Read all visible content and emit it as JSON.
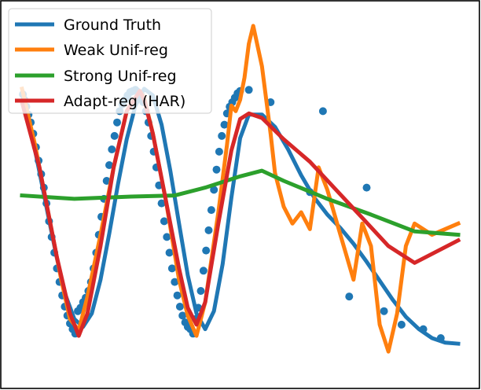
{
  "chart_data": {
    "type": "line",
    "title": "",
    "xlabel": "",
    "ylabel": "",
    "xlim": [
      0,
      100
    ],
    "ylim": [
      -1.5,
      1.65
    ],
    "grid": false,
    "axes_visible": false,
    "legend_position": "top-left",
    "series": [
      {
        "name": "Ground Truth",
        "color": "#1f77b4",
        "x": [
          0,
          2,
          4,
          6,
          8,
          10,
          12,
          14,
          16,
          18,
          20,
          22,
          24,
          26,
          28,
          30,
          32,
          34,
          36,
          38,
          40,
          42,
          44,
          46,
          48,
          50,
          52,
          55,
          58,
          61,
          64,
          67,
          70,
          73,
          76,
          79,
          82,
          85,
          88,
          91,
          94,
          97,
          100
        ],
        "y": [
          0.96,
          0.64,
          0.26,
          -0.13,
          -0.51,
          -0.84,
          -1.05,
          -1.12,
          -1.0,
          -0.7,
          -0.29,
          0.15,
          0.55,
          0.85,
          1.0,
          0.94,
          0.68,
          0.27,
          -0.2,
          -0.66,
          -1.0,
          -1.14,
          -0.98,
          -0.56,
          0.03,
          0.56,
          0.77,
          0.77,
          0.66,
          0.46,
          0.23,
          0.03,
          -0.12,
          -0.24,
          -0.38,
          -0.54,
          -0.71,
          -0.88,
          -1.03,
          -1.14,
          -1.22,
          -1.26,
          -1.27
        ]
      },
      {
        "name": "Weak Unif-reg",
        "color": "#ff7f0e",
        "x": [
          0,
          3,
          6,
          9,
          11,
          13,
          15,
          18,
          21,
          24,
          27,
          28,
          30,
          33,
          36,
          38,
          40,
          42,
          45,
          47,
          48,
          49,
          50,
          51,
          52,
          53,
          55,
          57,
          58,
          60,
          62,
          64,
          66,
          68,
          70,
          73,
          76,
          78,
          80,
          82,
          84,
          86,
          88,
          90,
          94,
          100
        ],
        "y": [
          1.0,
          0.5,
          -0.1,
          -0.7,
          -1.05,
          -1.15,
          -0.85,
          -0.3,
          0.3,
          0.8,
          0.98,
          0.92,
          0.6,
          0.0,
          -0.7,
          -1.02,
          -1.2,
          -0.9,
          -0.1,
          0.5,
          0.85,
          0.8,
          0.9,
          1.1,
          1.4,
          1.56,
          1.2,
          0.6,
          0.25,
          -0.05,
          -0.2,
          -0.1,
          -0.25,
          0.3,
          0.1,
          -0.3,
          -0.7,
          -0.2,
          -0.4,
          -1.1,
          -1.34,
          -1.0,
          -0.4,
          -0.2,
          -0.3,
          -0.2
        ]
      },
      {
        "name": "Strong Unif-reg",
        "color": "#2ca02c",
        "x": [
          0,
          12,
          25,
          35,
          42,
          50,
          55,
          60,
          70,
          80,
          90,
          100
        ],
        "y": [
          0.05,
          0.02,
          0.04,
          0.05,
          0.12,
          0.22,
          0.27,
          0.18,
          0.02,
          -0.12,
          -0.27,
          -0.3
        ]
      },
      {
        "name": "Adapt-reg (HAR)",
        "color": "#d62728",
        "x": [
          0,
          4,
          8,
          11,
          13,
          15,
          18,
          21,
          24,
          27,
          28,
          30,
          33,
          36,
          38,
          40,
          42,
          45,
          48,
          50,
          52,
          55,
          60,
          66,
          72,
          78,
          84,
          90,
          100
        ],
        "y": [
          0.88,
          0.3,
          -0.5,
          -1.0,
          -1.2,
          -1.0,
          -0.4,
          0.3,
          0.8,
          0.98,
          0.9,
          0.6,
          0.0,
          -0.6,
          -0.95,
          -1.1,
          -0.9,
          -0.2,
          0.45,
          0.73,
          0.78,
          0.74,
          0.55,
          0.35,
          0.1,
          -0.15,
          -0.4,
          -0.55,
          -0.35
        ]
      },
      {
        "name": "",
        "type": "scatter",
        "color": "#1f77b4",
        "x": [
          0.2,
          0.6,
          1.0,
          1.5,
          2.0,
          2.6,
          3.2,
          3.8,
          4.4,
          5.0,
          5.6,
          6.2,
          6.8,
          7.4,
          8.0,
          8.6,
          9.2,
          9.8,
          10.4,
          11.0,
          11.6,
          12.2,
          12.8,
          13.4,
          14.0,
          14.6,
          15.2,
          15.8,
          16.4,
          17.0,
          17.6,
          18.2,
          18.8,
          19.4,
          20.0,
          20.6,
          21.2,
          21.8,
          22.4,
          23.0,
          23.6,
          24.2,
          24.8,
          25.4,
          26.0,
          26.6,
          27.2,
          27.8,
          28.4,
          29.0,
          29.6,
          30.2,
          30.8,
          31.4,
          32.0,
          32.6,
          33.2,
          33.8,
          34.4,
          35.0,
          35.6,
          36.2,
          36.8,
          37.4,
          38.0,
          38.6,
          39.2,
          39.8,
          40.4,
          41.0,
          41.6,
          42.2,
          42.8,
          43.4,
          44.0,
          44.6,
          45.2,
          45.8,
          46.4,
          47.0,
          47.6,
          48.2,
          48.8,
          49.4,
          50.0,
          52.0,
          57.0,
          66.0,
          69.0,
          75.0,
          79.0,
          83.0,
          87.0,
          92.0,
          96.0
        ],
        "y": [
          0.95,
          0.9,
          0.84,
          0.77,
          0.7,
          0.6,
          0.48,
          0.36,
          0.24,
          0.12,
          -0.02,
          -0.18,
          -0.32,
          -0.46,
          -0.6,
          -0.72,
          -0.84,
          -0.94,
          -1.02,
          -1.09,
          -1.14,
          -1.18,
          -0.98,
          -0.95,
          -0.9,
          -0.86,
          -0.8,
          -0.72,
          -0.6,
          -0.46,
          -0.3,
          -0.14,
          0.02,
          0.18,
          0.32,
          0.46,
          0.58,
          0.7,
          0.8,
          0.86,
          0.9,
          0.94,
          0.97,
          0.98,
          0.99,
          0.97,
          0.95,
          0.88,
          0.8,
          0.7,
          0.58,
          0.44,
          0.3,
          0.14,
          -0.02,
          -0.18,
          -0.32,
          -0.46,
          -0.6,
          -0.72,
          -0.84,
          -0.94,
          -1.02,
          -1.08,
          -1.12,
          -1.14,
          -1.18,
          -1.05,
          -0.95,
          -0.8,
          -0.62,
          -0.44,
          -0.26,
          -0.08,
          0.1,
          0.28,
          0.44,
          0.58,
          0.68,
          0.78,
          0.84,
          0.88,
          0.92,
          0.96,
          0.98,
          0.99,
          0.88,
          0.08,
          0.8,
          -0.85,
          0.12,
          -0.98,
          -1.1,
          -1.14,
          -1.22
        ]
      }
    ]
  }
}
